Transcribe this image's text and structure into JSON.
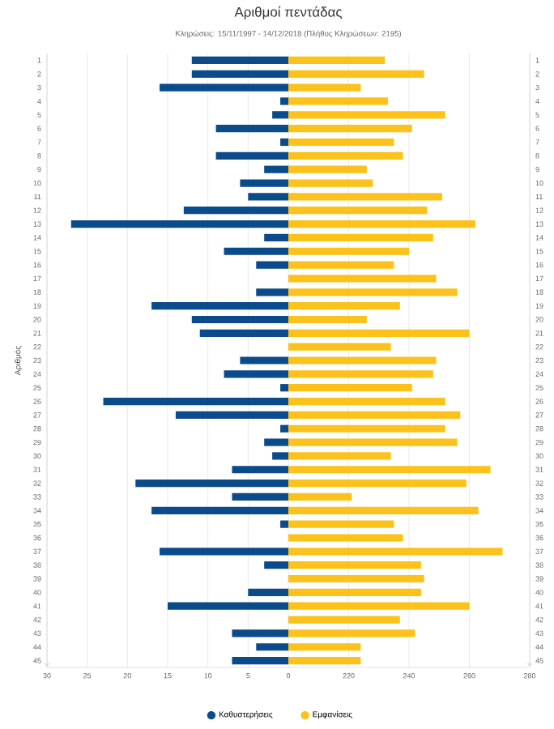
{
  "chart_data": [
    {
      "type": "bar",
      "orientation": "horizontal",
      "title": "Αριθμοί πεντάδας",
      "subtitle": "Κληρώσεις: 15/11/1997 - 14/12/2018 (Πλήθος Κληρώσεων: 2195)",
      "ylabel": "Αριθμός",
      "categories": [
        "1",
        "2",
        "3",
        "4",
        "5",
        "6",
        "7",
        "8",
        "9",
        "10",
        "11",
        "12",
        "13",
        "14",
        "15",
        "16",
        "17",
        "18",
        "19",
        "20",
        "21",
        "22",
        "23",
        "24",
        "25",
        "26",
        "27",
        "28",
        "29",
        "30",
        "31",
        "32",
        "33",
        "34",
        "35",
        "36",
        "37",
        "38",
        "39",
        "40",
        "41",
        "42",
        "43",
        "44",
        "45"
      ],
      "series": [
        {
          "name": "Καθυστερήσεις",
          "color": "#0b4a8b",
          "values": [
            12,
            12,
            16,
            1,
            2,
            9,
            1,
            9,
            3,
            6,
            5,
            13,
            27,
            3,
            8,
            4,
            0,
            4,
            17,
            12,
            11,
            0,
            6,
            8,
            1,
            23,
            14,
            1,
            3,
            2,
            7,
            19,
            7,
            17,
            1,
            0,
            16,
            3,
            0,
            5,
            15,
            0,
            7,
            4,
            7
          ]
        }
      ],
      "xlim": [
        30,
        0
      ],
      "xticks": [
        30,
        25,
        20,
        15,
        10,
        5,
        0
      ],
      "grid": "x",
      "legend": "bottom"
    },
    {
      "type": "bar",
      "orientation": "horizontal",
      "categories": [
        "1",
        "2",
        "3",
        "4",
        "5",
        "6",
        "7",
        "8",
        "9",
        "10",
        "11",
        "12",
        "13",
        "14",
        "15",
        "16",
        "17",
        "18",
        "19",
        "20",
        "21",
        "22",
        "23",
        "24",
        "25",
        "26",
        "27",
        "28",
        "29",
        "30",
        "31",
        "32",
        "33",
        "34",
        "35",
        "36",
        "37",
        "38",
        "39",
        "40",
        "41",
        "42",
        "43",
        "44",
        "45"
      ],
      "series": [
        {
          "name": "Εμφανίσεις",
          "color": "#fcc21b",
          "values": [
            232,
            245,
            224,
            233,
            252,
            241,
            235,
            238,
            226,
            228,
            251,
            246,
            262,
            248,
            240,
            235,
            249,
            256,
            237,
            226,
            260,
            234,
            249,
            248,
            241,
            252,
            257,
            252,
            256,
            234,
            267,
            259,
            221,
            263,
            235,
            238,
            271,
            244,
            245,
            244,
            260,
            237,
            242,
            224,
            224
          ]
        }
      ],
      "xlim": [
        200,
        280
      ],
      "xticks": [
        220,
        240,
        260,
        280
      ],
      "grid": "x",
      "legend": "bottom"
    }
  ]
}
